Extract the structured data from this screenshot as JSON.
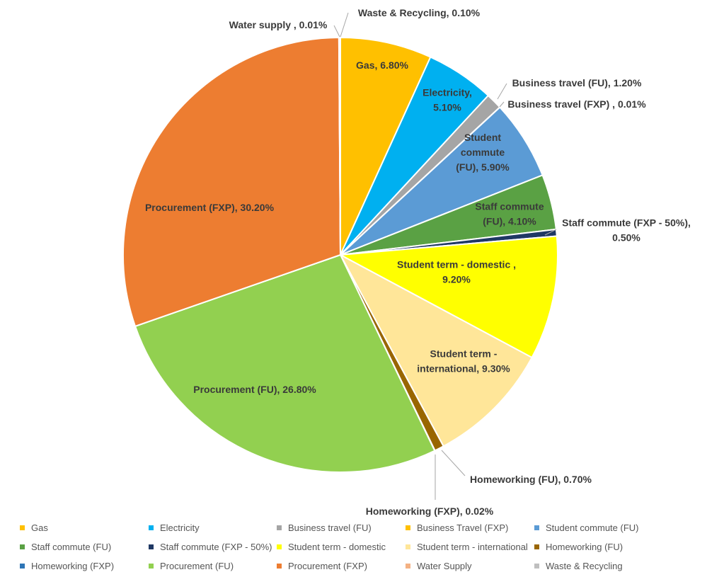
{
  "chart_data": {
    "type": "pie",
    "title": "",
    "slices": [
      {
        "name": "Gas",
        "legend": "Gas",
        "value": 6.8,
        "label": [
          "Gas, 6.80%"
        ],
        "color": "#ffc000"
      },
      {
        "name": "Electricity",
        "legend": "Electricity",
        "value": 5.1,
        "label": [
          "Electricity,",
          "5.10%"
        ],
        "color": "#00b0f0"
      },
      {
        "name": "Business travel (FU)",
        "legend": "Business travel (FU)",
        "value": 1.2,
        "label": [
          "Business travel (FU), 1.20%"
        ],
        "color": "#a5a5a5"
      },
      {
        "name": "Business travel (FXP)",
        "legend": "Business Travel (FXP)",
        "value": 0.01,
        "label": [
          "Business travel  (FXP) , 0.01%"
        ],
        "color": "#ffc000"
      },
      {
        "name": "Student commute (FU)",
        "legend": "Student commute (FU)",
        "value": 5.9,
        "label": [
          "Student",
          "commute",
          "(FU), 5.90%"
        ],
        "color": "#5b9bd5"
      },
      {
        "name": "Staff commute (FU)",
        "legend": "Staff commute (FU)",
        "value": 4.1,
        "label": [
          "Staff commute",
          "(FU), 4.10%"
        ],
        "color": "#5aa144"
      },
      {
        "name": "Staff commute (FXP - 50%)",
        "legend": "Staff commute (FXP - 50%)",
        "value": 0.5,
        "label": [
          "Staff commute (FXP - 50%),",
          "0.50%"
        ],
        "color": "#1f3864"
      },
      {
        "name": "Student term - domestic",
        "legend": "Student term - domestic",
        "value": 9.2,
        "label": [
          "Student term - domestic ,",
          "9.20%"
        ],
        "color": "#ffff00"
      },
      {
        "name": "Student term - international",
        "legend": "Student term - international",
        "value": 9.3,
        "label": [
          "Student term -",
          "international, 9.30%"
        ],
        "color": "#ffe699"
      },
      {
        "name": "Homeworking (FU)",
        "legend": "Homeworking (FU)",
        "value": 0.7,
        "label": [
          "Homeworking (FU), 0.70%"
        ],
        "color": "#996600"
      },
      {
        "name": "Homeworking (FXP)",
        "legend": "Homeworking (FXP)",
        "value": 0.02,
        "label": [
          "Homeworking (FXP), 0.02%"
        ],
        "color": "#2e75b6"
      },
      {
        "name": "Procurement (FU)",
        "legend": "Procurement (FU)",
        "value": 26.8,
        "label": [
          "Procurement (FU), 26.80%"
        ],
        "color": "#92d050"
      },
      {
        "name": "Procurement (FXP)",
        "legend": "Procurement (FXP)",
        "value": 30.2,
        "label": [
          "Procurement (FXP), 30.20%"
        ],
        "color": "#ed7d31"
      },
      {
        "name": "Water Supply",
        "legend": "Water Supply",
        "value": 0.01,
        "label": [
          "Water supply , 0.01%"
        ],
        "color": "#f4b183"
      },
      {
        "name": "Waste & Recycling",
        "legend": "Waste & Recycling",
        "value": 0.1,
        "label": [
          "Waste & Recycling, 0.10%"
        ],
        "color": "#bfbfbf"
      }
    ],
    "legend_position": "bottom",
    "start_angle": "12 o'clock",
    "direction": "clockwise"
  }
}
